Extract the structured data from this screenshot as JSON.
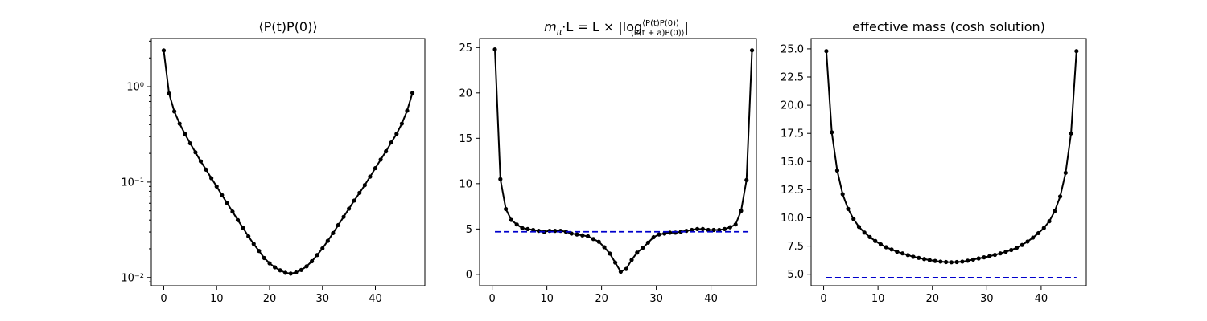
{
  "chart_data": [
    {
      "type": "line",
      "title": "⟨P(t)P(0)⟩",
      "yscale": "log",
      "xlim": [
        -2.35,
        49.35
      ],
      "ylim": [
        0.0082,
        3.2
      ],
      "xticks": [
        0,
        10,
        20,
        30,
        40
      ],
      "xtick_labels": [
        "0",
        "10",
        "20",
        "30",
        "40"
      ],
      "yticks": [
        0.01,
        0.1,
        1
      ],
      "ytick_labels": [
        "10⁻²",
        "10⁻¹",
        "10⁰"
      ],
      "grid": false,
      "series": [
        {
          "color": "#000000",
          "x": [
            0,
            1,
            2,
            3,
            4,
            5,
            6,
            7,
            8,
            9,
            10,
            11,
            12,
            13,
            14,
            15,
            16,
            17,
            18,
            19,
            20,
            21,
            22,
            23,
            24,
            25,
            26,
            27,
            28,
            29,
            30,
            31,
            32,
            33,
            34,
            35,
            36,
            37,
            38,
            39,
            40,
            41,
            42,
            43,
            44,
            45,
            46,
            47
          ],
          "y": [
            2.4,
            0.85,
            0.55,
            0.41,
            0.32,
            0.255,
            0.205,
            0.165,
            0.135,
            0.11,
            0.09,
            0.073,
            0.06,
            0.049,
            0.04,
            0.033,
            0.027,
            0.0225,
            0.019,
            0.016,
            0.0141,
            0.0128,
            0.0119,
            0.0112,
            0.011,
            0.0113,
            0.012,
            0.0131,
            0.0148,
            0.0172,
            0.0202,
            0.0242,
            0.0292,
            0.0355,
            0.0432,
            0.0526,
            0.064,
            0.077,
            0.093,
            0.114,
            0.14,
            0.172,
            0.21,
            0.26,
            0.32,
            0.41,
            0.56,
            0.86
          ]
        }
      ]
    },
    {
      "type": "line",
      "title_parts": {
        "lhs": "m",
        "lhs_sub": "π",
        "mid": "·L = L × |log",
        "numerator": "⟨P(t)P(0)⟩",
        "denominator": "⟨P(t + a)P(0)⟩",
        "close": "|"
      },
      "xlim": [
        -2.3,
        48.3
      ],
      "ylim": [
        -1.25,
        26.0
      ],
      "xticks": [
        0,
        10,
        20,
        30,
        40
      ],
      "xtick_labels": [
        "0",
        "10",
        "20",
        "30",
        "40"
      ],
      "yticks": [
        0,
        5,
        10,
        15,
        20,
        25
      ],
      "ytick_labels": [
        "0",
        "5",
        "10",
        "15",
        "20",
        "25"
      ],
      "grid": false,
      "series": [
        {
          "color": "#000000",
          "x": [
            0.5,
            1.5,
            2.5,
            3.5,
            4.5,
            5.5,
            6.5,
            7.5,
            8.5,
            9.5,
            10.5,
            11.5,
            12.5,
            13.5,
            14.5,
            15.5,
            16.5,
            17.5,
            18.5,
            19.5,
            20.5,
            21.5,
            22.5,
            23.5,
            24.5,
            25.5,
            26.5,
            27.5,
            28.5,
            29.5,
            30.5,
            31.5,
            32.5,
            33.5,
            34.5,
            35.5,
            36.5,
            37.5,
            38.5,
            39.5,
            40.5,
            41.5,
            42.5,
            43.5,
            44.5,
            45.5,
            46.5,
            47.5
          ],
          "y": [
            24.8,
            10.5,
            7.2,
            6.0,
            5.5,
            5.1,
            5.0,
            4.9,
            4.8,
            4.7,
            4.8,
            4.8,
            4.8,
            4.7,
            4.5,
            4.4,
            4.3,
            4.2,
            3.9,
            3.6,
            3.0,
            2.3,
            1.3,
            0.3,
            0.6,
            1.6,
            2.4,
            2.9,
            3.5,
            4.1,
            4.4,
            4.5,
            4.6,
            4.6,
            4.7,
            4.8,
            4.9,
            5.0,
            5.0,
            4.9,
            4.9,
            4.9,
            5.0,
            5.2,
            5.5,
            7.0,
            10.4,
            24.7
          ]
        },
        {
          "type": "reference",
          "color": "#0000cc",
          "style": "dashed",
          "x": [
            0.5,
            47.0
          ],
          "y": [
            4.7,
            4.7
          ]
        }
      ]
    },
    {
      "type": "line",
      "title": "effective mass (cosh solution)",
      "xlim": [
        -2.3,
        48.3
      ],
      "ylim": [
        3.98,
        25.92
      ],
      "xticks": [
        0,
        10,
        20,
        30,
        40
      ],
      "xtick_labels": [
        "0",
        "10",
        "20",
        "30",
        "40"
      ],
      "yticks": [
        5.0,
        7.5,
        10.0,
        12.5,
        15.0,
        17.5,
        20.0,
        22.5,
        25.0
      ],
      "ytick_labels": [
        "5.0",
        "7.5",
        "10.0",
        "12.5",
        "15.0",
        "17.5",
        "20.0",
        "22.5",
        "25.0"
      ],
      "grid": false,
      "series": [
        {
          "color": "#000000",
          "x": [
            0.5,
            1.5,
            2.5,
            3.5,
            4.5,
            5.5,
            6.5,
            7.5,
            8.5,
            9.5,
            10.5,
            11.5,
            12.5,
            13.5,
            14.5,
            15.5,
            16.5,
            17.5,
            18.5,
            19.5,
            20.5,
            21.5,
            22.5,
            23.5,
            24.5,
            25.5,
            26.5,
            27.5,
            28.5,
            29.5,
            30.5,
            31.5,
            32.5,
            33.5,
            34.5,
            35.5,
            36.5,
            37.5,
            38.5,
            39.5,
            40.5,
            41.5,
            42.5,
            43.5,
            44.5,
            45.5,
            46.5
          ],
          "y": [
            24.8,
            17.6,
            14.2,
            12.1,
            10.8,
            9.9,
            9.2,
            8.7,
            8.3,
            7.95,
            7.65,
            7.4,
            7.2,
            7.0,
            6.85,
            6.7,
            6.55,
            6.45,
            6.35,
            6.25,
            6.18,
            6.12,
            6.08,
            6.06,
            6.08,
            6.12,
            6.2,
            6.3,
            6.4,
            6.5,
            6.6,
            6.72,
            6.85,
            7.0,
            7.15,
            7.35,
            7.6,
            7.9,
            8.25,
            8.65,
            9.1,
            9.7,
            10.6,
            11.9,
            14.0,
            17.5,
            24.8
          ]
        },
        {
          "type": "reference",
          "color": "#0000cc",
          "style": "dashed",
          "x": [
            0.5,
            46.5
          ],
          "y": [
            4.7,
            4.7
          ]
        }
      ]
    }
  ]
}
